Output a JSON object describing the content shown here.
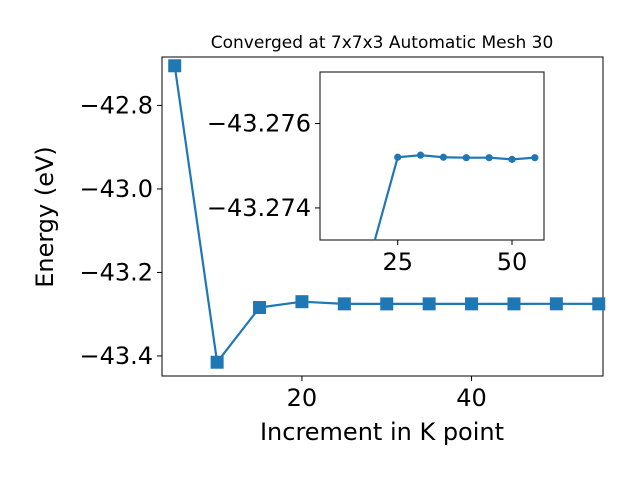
{
  "chart_data": [
    {
      "type": "line",
      "title": "Converged at 7x7x3 Automatic Mesh 30",
      "xlabel": "Increment in K point",
      "ylabel": "Energy (eV)",
      "xlim": [
        3.5,
        55.5
      ],
      "ylim": [
        -43.448,
        -42.684
      ],
      "xticks": [
        20,
        40
      ],
      "xtick_labels": [
        "20",
        "40"
      ],
      "yticks": [
        -42.8,
        -43.0,
        -43.2,
        -43.4
      ],
      "ytick_labels": [
        "−42.8",
        "−43.0",
        "−43.2",
        "−43.4"
      ],
      "marker": "square",
      "color": "#1f77b4",
      "grid": false,
      "x": [
        5,
        10,
        15,
        20,
        25,
        30,
        35,
        40,
        45,
        50,
        55
      ],
      "y": [
        -42.705,
        -43.415,
        -43.284,
        -43.27,
        -43.2752,
        -43.2753,
        -43.2752,
        -43.2752,
        -43.2752,
        -43.2751,
        -43.2752
      ]
    },
    {
      "type": "line",
      "role": "inset",
      "xlim": [
        8,
        57
      ],
      "ylim": [
        -43.27324,
        -43.27722
      ],
      "xticks": [
        25,
        50
      ],
      "xtick_labels": [
        "25",
        "50"
      ],
      "yticks": [
        -43.276,
        -43.274
      ],
      "ytick_labels": [
        "−43.276",
        "−43.274"
      ],
      "marker": "circle",
      "color": "#1f77b4",
      "grid": false,
      "x": [
        20,
        25,
        30,
        35,
        40,
        45,
        50,
        55
      ],
      "y": [
        -43.27,
        -43.2752,
        -43.27525,
        -43.2752,
        -43.27519,
        -43.27519,
        -43.27515,
        -43.27519
      ]
    }
  ]
}
